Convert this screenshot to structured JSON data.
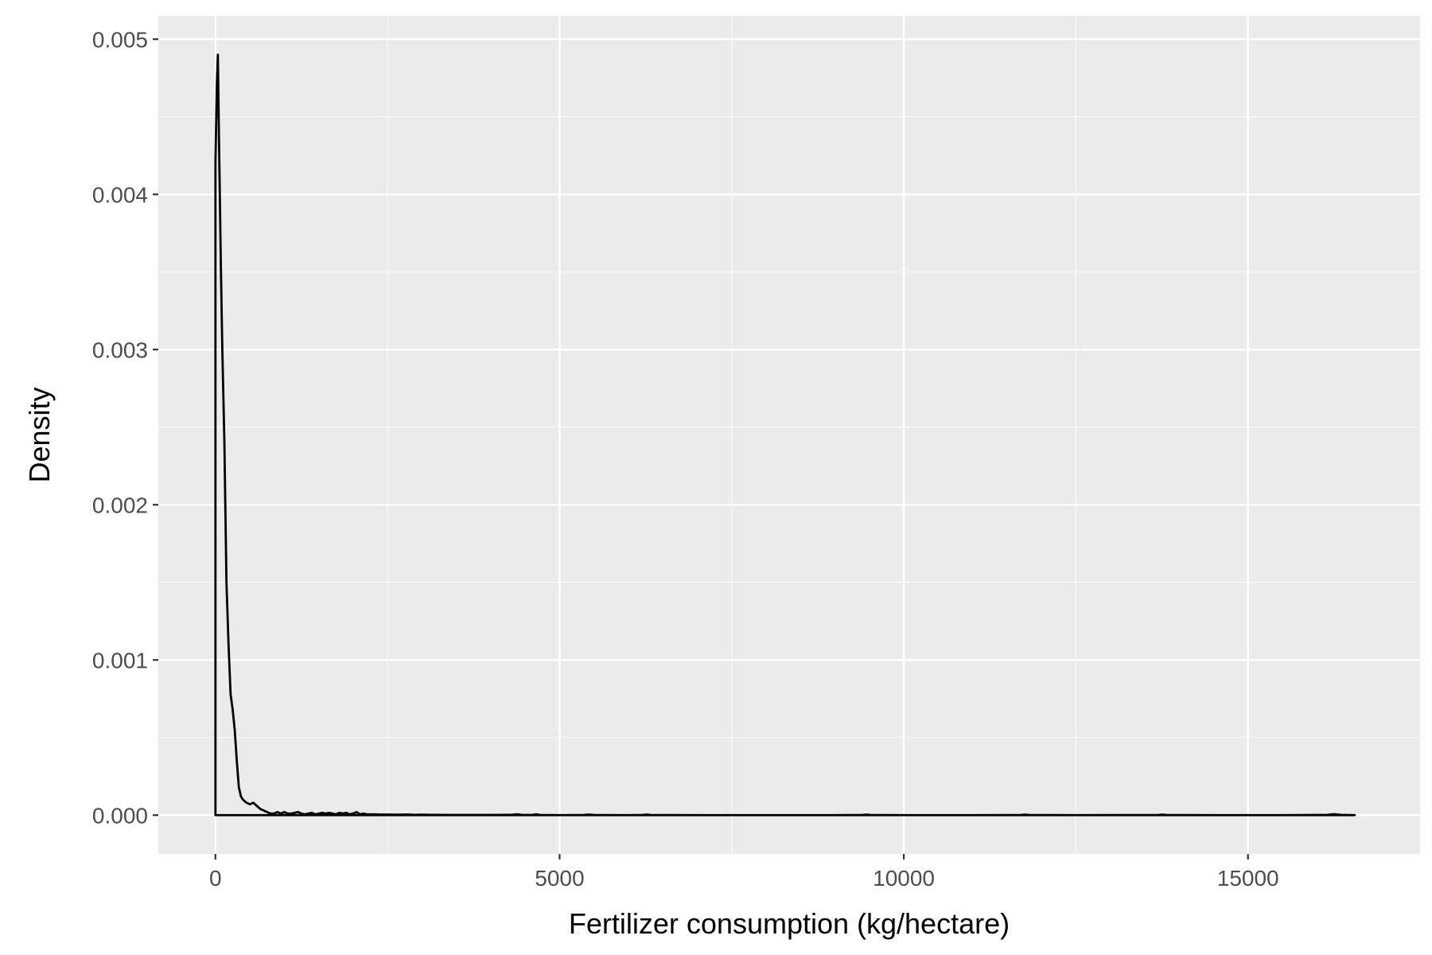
{
  "chart_data": {
    "type": "area",
    "geom": "density",
    "title": "",
    "xlabel": "Fertilizer consumption (kg/hectare)",
    "ylabel": "Density",
    "xlim": [
      -830,
      17500
    ],
    "ylim": [
      -0.00025,
      0.00515
    ],
    "x_ticks": [
      0,
      5000,
      10000,
      15000
    ],
    "x_tick_labels": [
      "0",
      "5000",
      "10000",
      "15000"
    ],
    "x_minor_ticks": [
      2500,
      7500,
      12500
    ],
    "y_ticks": [
      0,
      0.001,
      0.002,
      0.003,
      0.004,
      0.005
    ],
    "y_tick_labels": [
      "0.000",
      "0.001",
      "0.002",
      "0.003",
      "0.004",
      "0.005"
    ],
    "y_minor_ticks": [
      0.0005,
      0.0015,
      0.0025,
      0.0035,
      0.0045
    ],
    "grid": true,
    "legend": "none",
    "colors": {
      "panel_background": "#ebebeb",
      "grid_major": "#ffffff",
      "grid_minor": "#f7f7f7",
      "line": "#000000",
      "tick_text": "#4d4d4d",
      "axis_title": "#000000"
    },
    "series": [
      {
        "x": [
          0,
          20,
          35,
          50,
          60,
          80,
          100,
          130,
          160,
          190,
          220,
          250,
          280,
          310,
          340,
          370,
          400,
          450,
          500,
          550,
          600,
          650,
          700,
          750,
          800,
          850,
          900,
          950,
          1000,
          1050,
          1100,
          1150,
          1200,
          1250,
          1300,
          1350,
          1400,
          1450,
          1500,
          1550,
          1600,
          1650,
          1700,
          1750,
          1800,
          1850,
          1900,
          1950,
          2000,
          2050,
          2100,
          2150,
          2200,
          2300,
          2400,
          2500,
          2600,
          2700,
          2800,
          2900,
          3000,
          3100,
          3500,
          4000,
          4300,
          4380,
          4450,
          4600,
          4660,
          4720,
          5000,
          5350,
          5420,
          5500,
          6000,
          6200,
          6260,
          6320,
          7000,
          8000,
          9000,
          9400,
          9460,
          9520,
          10000,
          11000,
          11700,
          11760,
          11820,
          12500,
          13700,
          13760,
          13820,
          14500,
          15500,
          16150,
          16250,
          16300,
          16350,
          16550
        ],
        "y": [
          0.0042,
          0.0047,
          0.0049,
          0.0044,
          0.0041,
          0.0035,
          0.003,
          0.0024,
          0.0015,
          0.0011,
          0.00078,
          0.00068,
          0.00055,
          0.00035,
          0.00018,
          0.00012,
          0.0001,
          8e-05,
          7e-05,
          8e-05,
          6e-05,
          4e-05,
          3e-05,
          2e-05,
          1e-05,
          1e-05,
          2e-05,
          1e-05,
          2e-05,
          1e-05,
          1e-05,
          1.5e-05,
          2e-05,
          1e-05,
          5e-06,
          1e-05,
          1.5e-05,
          5e-06,
          1e-05,
          1.5e-05,
          1e-05,
          1.5e-05,
          1e-05,
          5e-06,
          1.5e-05,
          1e-05,
          1.5e-05,
          5e-06,
          1e-05,
          2e-05,
          5e-06,
          1e-05,
          5e-06,
          5e-06,
          4e-06,
          4e-06,
          3e-06,
          3e-06,
          4e-06,
          2e-06,
          3e-06,
          2e-06,
          1e-06,
          1e-06,
          2e-06,
          6e-06,
          2e-06,
          1e-06,
          5e-06,
          1e-06,
          0.0,
          1e-06,
          4e-06,
          1e-06,
          0.0,
          1e-06,
          3e-06,
          1e-06,
          0.0,
          0.0,
          0.0,
          1e-06,
          3e-06,
          1e-06,
          0.0,
          0.0,
          1e-06,
          3e-06,
          1e-06,
          0.0,
          1e-06,
          3e-06,
          1e-06,
          0.0,
          0.0,
          2e-06,
          6e-06,
          4e-06,
          2e-06,
          0.0
        ]
      }
    ]
  }
}
